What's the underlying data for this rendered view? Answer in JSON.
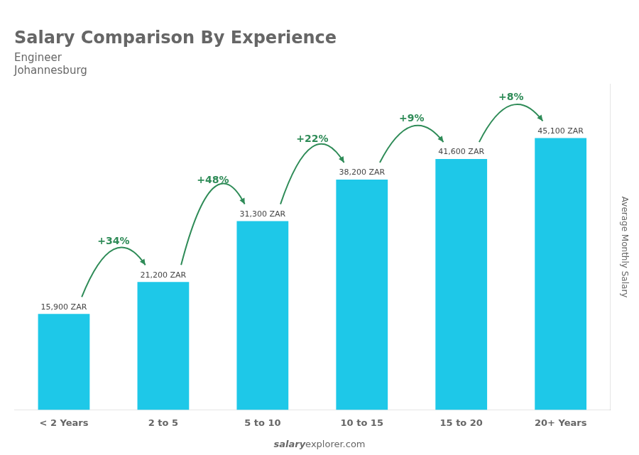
{
  "chart_data": {
    "type": "bar",
    "title": "Salary Comparison By Experience",
    "subtitle": [
      "Engineer",
      "Johannesburg"
    ],
    "ylabel": "Average Monthly Salary",
    "footer": [
      "salary",
      "explorer.com"
    ],
    "categories": [
      "< 2 Years",
      "2 to 5",
      "5 to 10",
      "10 to 15",
      "15 to 20",
      "20+ Years"
    ],
    "values": [
      15900,
      21200,
      31300,
      38200,
      41600,
      45100
    ],
    "value_labels": [
      "15,900 ZAR",
      "21,200 ZAR",
      "31,300 ZAR",
      "38,200 ZAR",
      "41,600 ZAR",
      "45,100 ZAR"
    ],
    "data_labels": true,
    "annotations": [
      {
        "text": "+34%",
        "from": "< 2 Years",
        "to": "2 to 5"
      },
      {
        "text": "+48%",
        "from": "2 to 5",
        "to": "5 to 10"
      },
      {
        "text": "+22%",
        "from": "5 to 10",
        "to": "10 to 15"
      },
      {
        "text": "+9%",
        "from": "10 to 15",
        "to": "15 to 20"
      },
      {
        "text": "+8%",
        "from": "15 to 20",
        "to": "20+ Years"
      }
    ],
    "color": "#1ec8e8",
    "ylim": [
      0,
      54000
    ],
    "yticks": [],
    "tick_labels": "x",
    "grid": false
  }
}
